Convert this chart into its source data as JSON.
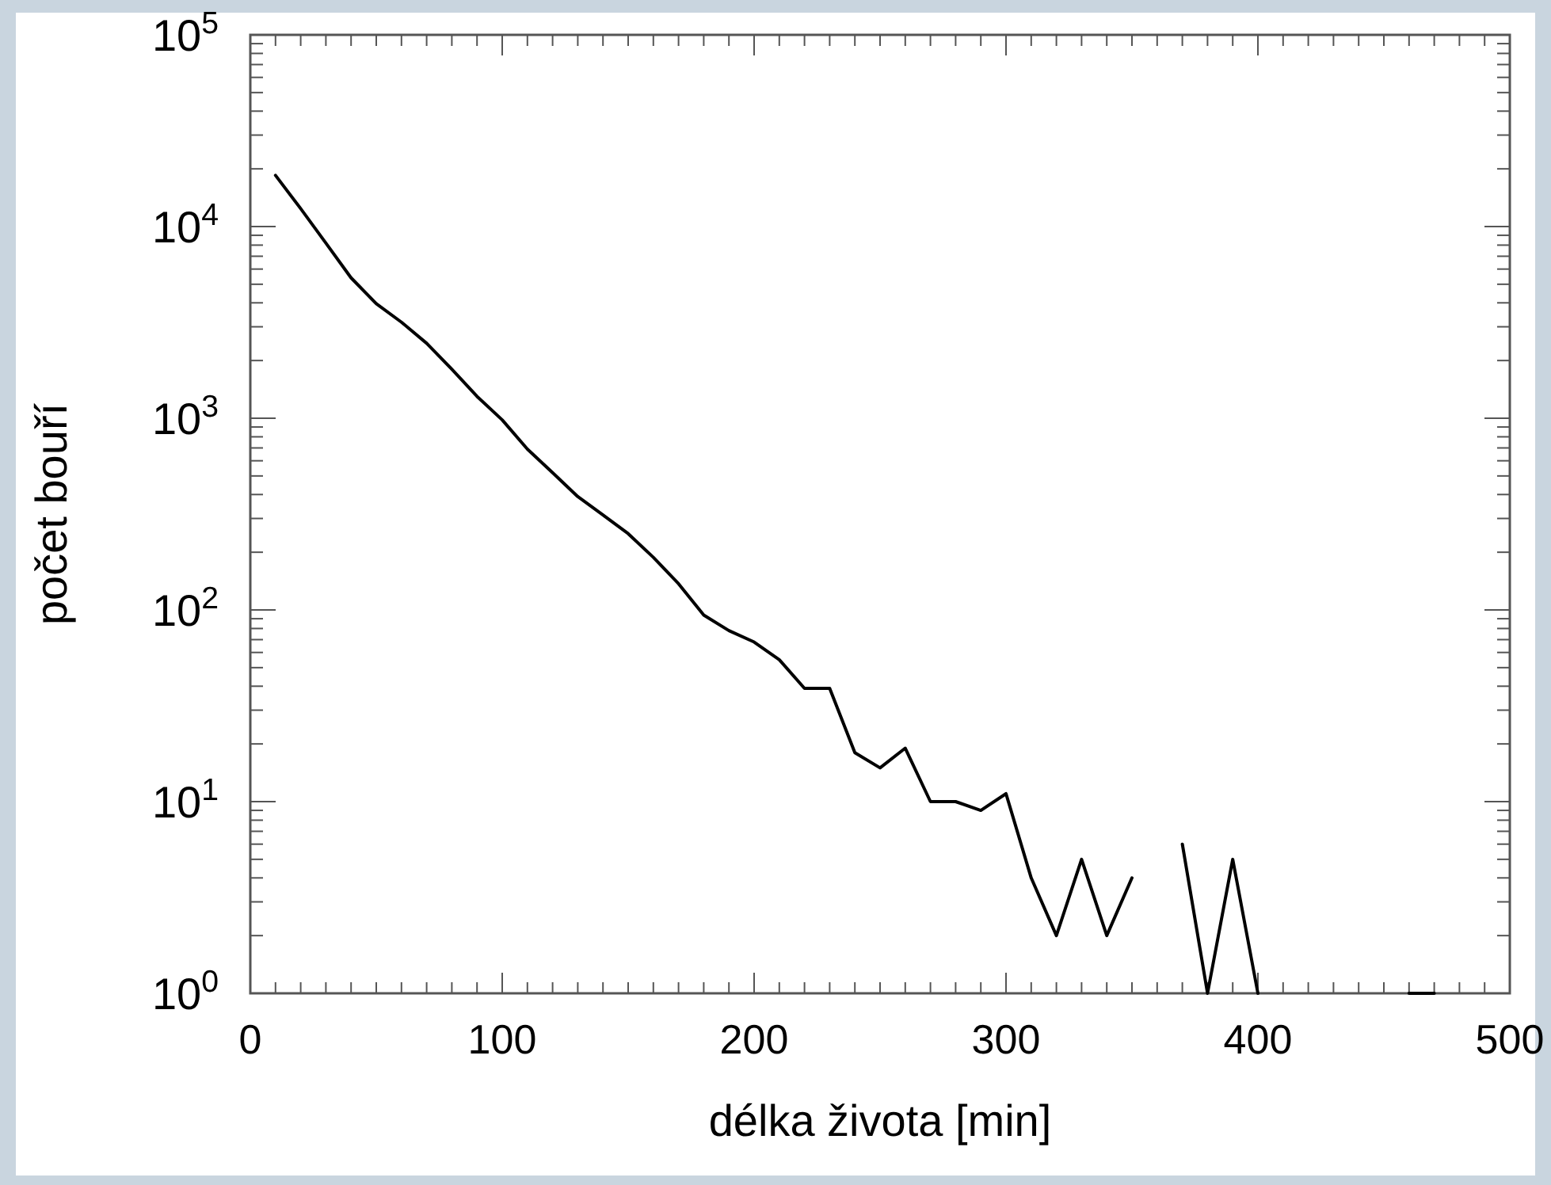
{
  "chart_data": {
    "type": "line",
    "xlabel": "délka života [min]",
    "ylabel": "počet bouří",
    "log": "y",
    "grid": false,
    "marker": "none",
    "line_style": "solid",
    "x": [
      10,
      20,
      30,
      40,
      50,
      60,
      70,
      80,
      90,
      100,
      110,
      120,
      130,
      140,
      150,
      160,
      170,
      180,
      190,
      200,
      210,
      220,
      230,
      240,
      250,
      260,
      270,
      280,
      290,
      300,
      310,
      320,
      330,
      340,
      350,
      360,
      370,
      380,
      390,
      400,
      410,
      420,
      430,
      440,
      450,
      460,
      470
    ],
    "series": [
      {
        "color": "#000000",
        "values": [
          18500,
          12400,
          8200,
          5400,
          3960,
          3170,
          2460,
          1800,
          1300,
          980,
          690,
          520,
          390,
          313,
          250,
          188,
          137,
          94,
          78,
          68,
          55,
          39,
          39,
          18,
          15,
          19,
          10,
          10,
          9,
          11,
          4,
          2,
          5,
          2,
          4,
          null,
          6,
          1,
          5,
          1,
          null,
          null,
          null,
          null,
          null,
          1,
          1
        ]
      }
    ],
    "xlim": [
      0,
      500
    ],
    "xticks": [
      0,
      {
        "value": 10,
        "label": null
      },
      {
        "value": 20,
        "label": null
      },
      {
        "value": 30,
        "label": null
      },
      {
        "value": 40,
        "label": null
      },
      {
        "value": 50,
        "label": null
      },
      {
        "value": 60,
        "label": null
      },
      {
        "value": 70,
        "label": null
      },
      {
        "value": 80,
        "label": null
      },
      {
        "value": 90,
        "label": null
      },
      100,
      {
        "value": 110,
        "label": null
      },
      {
        "value": 120,
        "label": null
      },
      {
        "value": 130,
        "label": null
      },
      {
        "value": 140,
        "label": null
      },
      {
        "value": 150,
        "label": null
      },
      {
        "value": 160,
        "label": null
      },
      {
        "value": 170,
        "label": null
      },
      {
        "value": 180,
        "label": null
      },
      {
        "value": 190,
        "label": null
      },
      200,
      {
        "value": 210,
        "label": null
      },
      {
        "value": 220,
        "label": null
      },
      {
        "value": 230,
        "label": null
      },
      {
        "value": 240,
        "label": null
      },
      {
        "value": 250,
        "label": null
      },
      {
        "value": 260,
        "label": null
      },
      {
        "value": 270,
        "label": null
      },
      {
        "value": 280,
        "label": null
      },
      {
        "value": 290,
        "label": null
      },
      300,
      {
        "value": 310,
        "label": null
      },
      {
        "value": 320,
        "label": null
      },
      {
        "value": 330,
        "label": null
      },
      {
        "value": 340,
        "label": null
      },
      {
        "value": 350,
        "label": null
      },
      {
        "value": 360,
        "label": null
      },
      {
        "value": 370,
        "label": null
      },
      {
        "value": 380,
        "label": null
      },
      {
        "value": 390,
        "label": null
      },
      400,
      {
        "value": 410,
        "label": null
      },
      {
        "value": 420,
        "label": null
      },
      {
        "value": 430,
        "label": null
      },
      {
        "value": 440,
        "label": null
      },
      {
        "value": 450,
        "label": null
      },
      {
        "value": 460,
        "label": null
      },
      {
        "value": 470,
        "label": null
      },
      {
        "value": 480,
        "label": null
      },
      {
        "value": 490,
        "label": null
      },
      500
    ],
    "ylim": [
      1,
      100000
    ],
    "yticks": [
      {
        "value": 1,
        "label": "10$^{0}$"
      },
      {
        "value": 2,
        "label": null
      },
      {
        "value": 3,
        "label": null
      },
      {
        "value": 4,
        "label": null
      },
      {
        "value": 5,
        "label": null
      },
      {
        "value": 6,
        "label": null
      },
      {
        "value": 7,
        "label": null
      },
      {
        "value": 8,
        "label": null
      },
      {
        "value": 9,
        "label": null
      },
      {
        "value": 10,
        "label": "10$^{1}$"
      },
      {
        "value": 20,
        "label": null
      },
      {
        "value": 30,
        "label": null
      },
      {
        "value": 40,
        "label": null
      },
      {
        "value": 50,
        "label": null
      },
      {
        "value": 60,
        "label": null
      },
      {
        "value": 70,
        "label": null
      },
      {
        "value": 80,
        "label": null
      },
      {
        "value": 90,
        "label": null
      },
      {
        "value": 100,
        "label": "10$^{2}$"
      },
      {
        "value": 200,
        "label": null
      },
      {
        "value": 300,
        "label": null
      },
      {
        "value": 400,
        "label": null
      },
      {
        "value": 500,
        "label": null
      },
      {
        "value": 600,
        "label": null
      },
      {
        "value": 700,
        "label": null
      },
      {
        "value": 800,
        "label": null
      },
      {
        "value": 900,
        "label": null
      },
      {
        "value": 1000,
        "label": "10$^{3}$"
      },
      {
        "value": 2000,
        "label": null
      },
      {
        "value": 3000,
        "label": null
      },
      {
        "value": 4000,
        "label": null
      },
      {
        "value": 5000,
        "label": null
      },
      {
        "value": 6000,
        "label": null
      },
      {
        "value": 7000,
        "label": null
      },
      {
        "value": 8000,
        "label": null
      },
      {
        "value": 9000,
        "label": null
      },
      {
        "value": 10000,
        "label": "10$^{4}$"
      },
      {
        "value": 20000,
        "label": null
      },
      {
        "value": 30000,
        "label": null
      },
      {
        "value": 40000,
        "label": null
      },
      {
        "value": 50000,
        "label": null
      },
      {
        "value": 60000,
        "label": null
      },
      {
        "value": 70000,
        "label": null
      },
      {
        "value": 80000,
        "label": null
      },
      {
        "value": 90000,
        "label": null
      },
      {
        "value": 100000,
        "label": "10$^{5}$"
      }
    ]
  }
}
